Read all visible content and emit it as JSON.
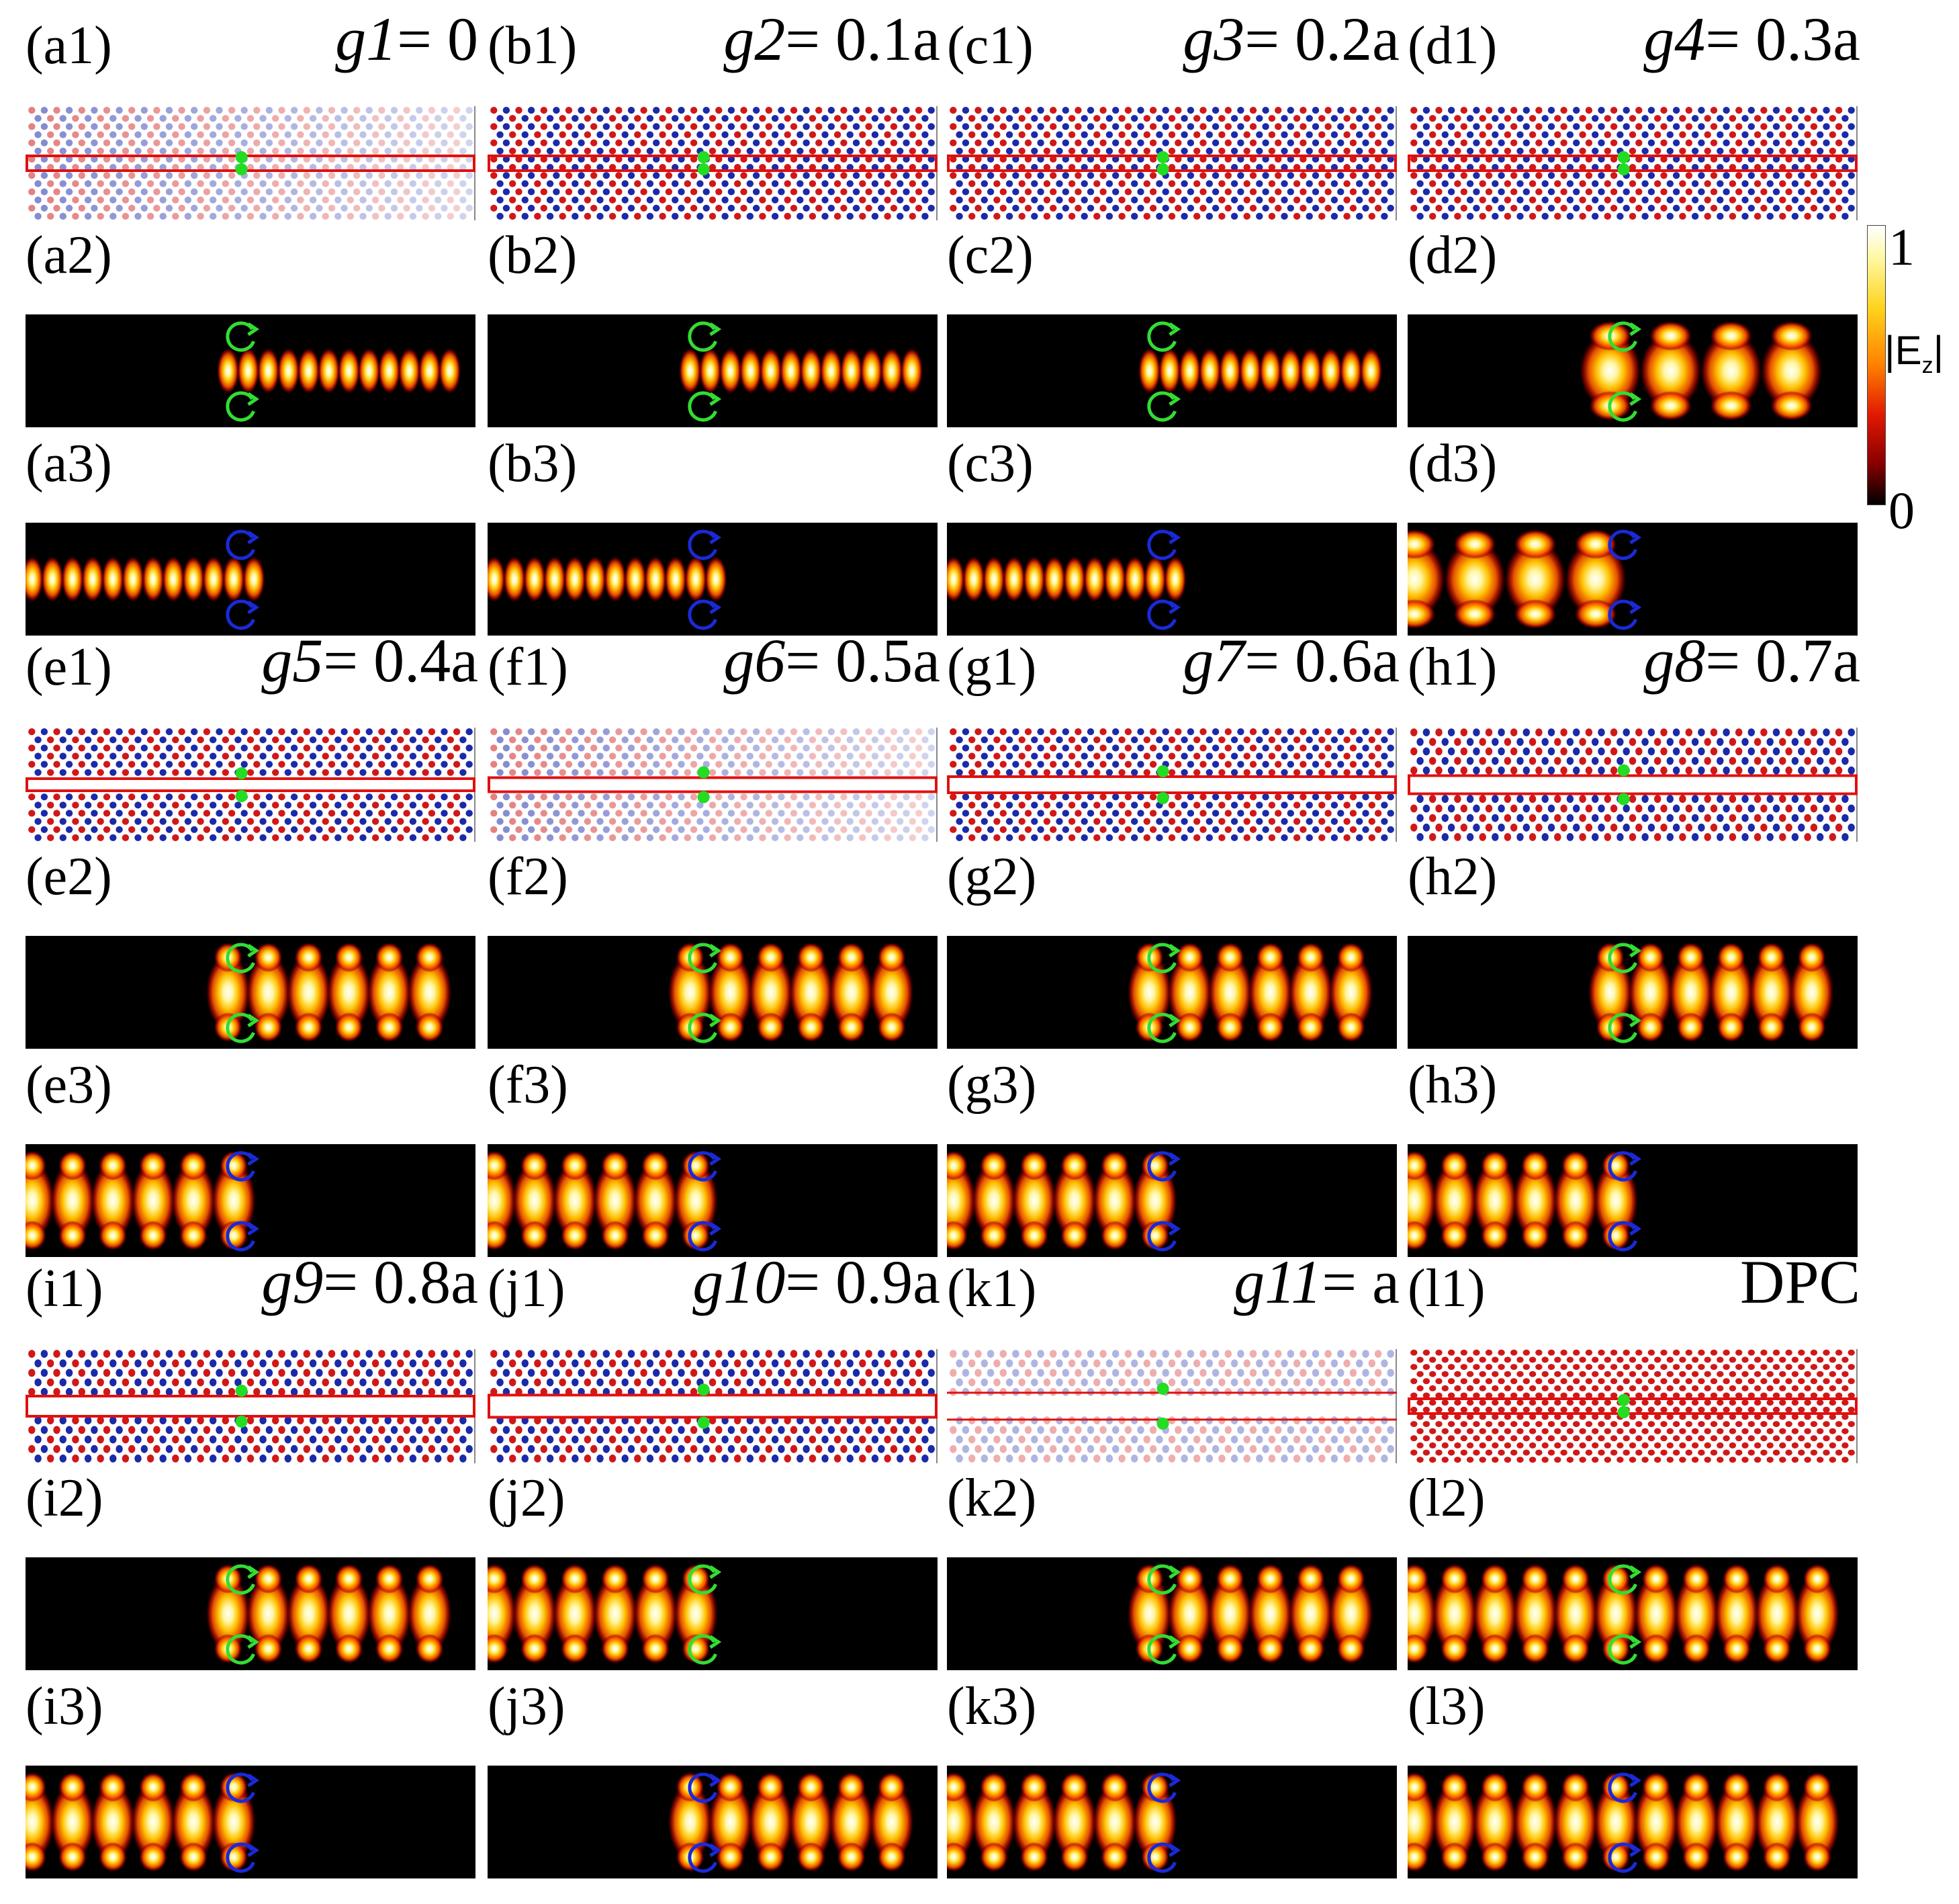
{
  "groups": [
    {
      "tags": [
        "(a1)",
        "(a2)",
        "(a3)"
      ],
      "var": "g1",
      "rest": "= 0",
      "faint": true,
      "boxstyle": "single-thin",
      "fieldR": "uniform",
      "fieldL": "uniform"
    },
    {
      "tags": [
        "(b1)",
        "(b2)",
        "(b3)"
      ],
      "var": "g2",
      "rest": "= 0.1a",
      "faint": false,
      "boxstyle": "single-thin",
      "fieldR": "uniform",
      "fieldL": "uniform"
    },
    {
      "tags": [
        "(c1)",
        "(c2)",
        "(c3)"
      ],
      "var": "g3",
      "rest": "= 0.2a",
      "faint": false,
      "boxstyle": "single-thin",
      "fieldR": "uniform",
      "fieldL": "uniform"
    },
    {
      "tags": [
        "(d1)",
        "(d2)",
        "(d3)"
      ],
      "var": "g4",
      "rest": "= 0.3a",
      "faint": false,
      "boxstyle": "single-thin",
      "fieldR": "pulses",
      "fieldL": "pulses"
    },
    {
      "tags": [
        "(e1)",
        "(e2)",
        "(e3)"
      ],
      "var": "g5",
      "rest": "= 0.4a",
      "faint": false,
      "boxstyle": "single",
      "fieldR": "bright",
      "fieldL": "bright"
    },
    {
      "tags": [
        "(f1)",
        "(f2)",
        "(f3)"
      ],
      "var": "g6",
      "rest": "= 0.5a",
      "faint": true,
      "boxstyle": "single",
      "fieldR": "bright",
      "fieldL": "bright"
    },
    {
      "tags": [
        "(g1)",
        "(g2)",
        "(g3)"
      ],
      "var": "g7",
      "rest": "= 0.6a",
      "faint": false,
      "boxstyle": "single",
      "fieldR": "bright",
      "fieldL": "bright"
    },
    {
      "tags": [
        "(h1)",
        "(h2)",
        "(h3)"
      ],
      "var": "g8",
      "rest": "= 0.7a",
      "faint": false,
      "boxstyle": "single",
      "fieldR": "bright",
      "fieldL": "bright"
    },
    {
      "tags": [
        "(i1)",
        "(i2)",
        "(i3)"
      ],
      "var": "g9",
      "rest": "= 0.8a",
      "faint": false,
      "boxstyle": "single",
      "fieldR": "bright",
      "fieldL": "bright"
    },
    {
      "tags": [
        "(j1)",
        "(j2)",
        "(j3)"
      ],
      "var": "g10",
      "rest": "= 0.9a",
      "faint": false,
      "boxstyle": "single",
      "fieldR": "bright-left",
      "fieldL": "bright-right"
    },
    {
      "tags": [
        "(k1)",
        "(k2)",
        "(k3)"
      ],
      "var": "g11",
      "rest": "= a",
      "faint": true,
      "boxstyle": "double-lines",
      "fieldR": "bright",
      "fieldL": "bright"
    },
    {
      "tags": [
        "(l1)",
        "(l2)",
        "(l3)"
      ],
      "var": "",
      "rest": "DPC",
      "faint": false,
      "boxstyle": "dpc",
      "fieldR": "symmetric",
      "fieldL": "symmetric"
    }
  ],
  "colorbar": {
    "max": "1",
    "min": "0",
    "label": "|E",
    "label_sub": "z",
    "label_end": "|"
  },
  "colors": {
    "site_red": "#d01818",
    "site_blue": "#1a2aa8",
    "box_red": "#e01010",
    "source_green": "#22dd22",
    "arrow_green": "#33dd33",
    "arrow_blue": "#1a2ad8",
    "field_bg": "#000000"
  }
}
